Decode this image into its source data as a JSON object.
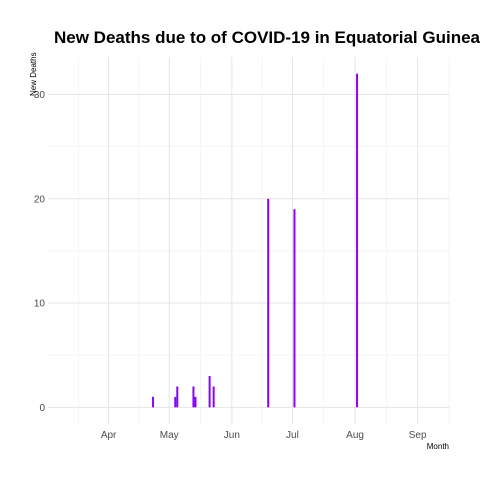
{
  "chart_data": {
    "type": "bar",
    "title": "New Deaths due to of COVID-19 in Equatorial Guinea",
    "xlabel": "Month",
    "ylabel": "New Deaths",
    "x_tick_labels": [
      "Apr",
      "May",
      "Jun",
      "Jul",
      "Aug",
      "Sep"
    ],
    "x_tick_dates": [
      "2020-04-01",
      "2020-05-01",
      "2020-06-01",
      "2020-07-01",
      "2020-08-01",
      "2020-09-01"
    ],
    "xlim": [
      "2020-03-02",
      "2020-09-17"
    ],
    "y_ticks": [
      0,
      10,
      20,
      30
    ],
    "ylim": [
      -1.6,
      33.6
    ],
    "grid": true,
    "bar_color": "#8b00ff",
    "x": [
      "2020-04-23",
      "2020-05-04",
      "2020-05-05",
      "2020-05-13",
      "2020-05-14",
      "2020-05-21",
      "2020-05-23",
      "2020-06-19",
      "2020-07-02",
      "2020-08-02"
    ],
    "values": [
      1,
      1,
      2,
      2,
      1,
      3,
      2,
      20,
      19,
      32
    ]
  }
}
